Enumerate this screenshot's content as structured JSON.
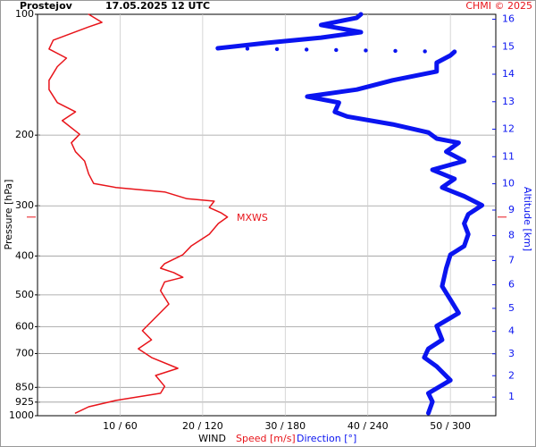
{
  "chart_data": {
    "type": "profile",
    "title": "Prostejov",
    "subtitle": "17.05.2025 12 UTC",
    "credit": "CHMI © 2025",
    "x_label": "WIND",
    "y_label": "Pressure [hPa]",
    "y2_label": "Altitude [km]",
    "ylim": [
      1000,
      100
    ],
    "y_log": true,
    "yticks": [
      100,
      200,
      300,
      400,
      500,
      600,
      700,
      850,
      925,
      1000
    ],
    "xlim": [
      0,
      55.5
    ],
    "x2lim": [
      0,
      333
    ],
    "xticks": [
      {
        "value": 10,
        "label": "10 / 60"
      },
      {
        "value": 20,
        "label": "20 / 120"
      },
      {
        "value": 30,
        "label": "30 / 180"
      },
      {
        "value": 40,
        "label": "40 / 240"
      },
      {
        "value": 50,
        "label": "50 / 300"
      }
    ],
    "y2ticks": [
      1,
      2,
      3,
      4,
      5,
      6,
      7,
      8,
      9,
      10,
      11,
      12,
      13,
      14,
      15,
      16
    ],
    "grid": true,
    "annotation": {
      "text": "MXWS",
      "pressure": 320
    },
    "series": [
      {
        "name": "Speed [m/s]",
        "color": "#e8141a",
        "axis": "x",
        "pressure": [
          100,
          104.7,
          107.5,
          116,
          122,
          128.6,
          135,
          146,
          154,
          166,
          175,
          184,
          199,
          209,
          220,
          232,
          250,
          264,
          270,
          277,
          288,
          292,
          303,
          312,
          320,
          332,
          353,
          378,
          397,
          418,
          429,
          440,
          452,
          464,
          488,
          527,
          569,
          614,
          647,
          681,
          716,
          762,
          794,
          845,
          879,
          916,
          950,
          985
        ],
        "values": [
          6.2,
          7.8,
          6.2,
          1.9,
          1.4,
          3.5,
          2.4,
          1.4,
          1.4,
          2.4,
          4.6,
          3.0,
          5.1,
          4.1,
          4.6,
          5.7,
          6.2,
          6.8,
          9.5,
          15.4,
          18.1,
          21.4,
          20.8,
          22.2,
          23.0,
          21.9,
          20.8,
          18.6,
          17.6,
          15.4,
          14.9,
          16.5,
          17.6,
          15.4,
          14.9,
          15.9,
          14.3,
          12.7,
          13.8,
          12.2,
          13.8,
          17.0,
          14.3,
          15.4,
          14.9,
          9.5,
          6.2,
          4.6
        ]
      },
      {
        "name": "Direction [°]",
        "color": "#0a14f0",
        "axis": "x2",
        "pressure": [
          100,
          102,
          106.3,
          110.8,
          114.3,
          117.8,
          121.5,
          123,
          124,
          126.6,
          132,
          138.8,
          146,
          154,
          160.3,
          166,
          175,
          179.7,
          188,
          197,
          204,
          209,
          220,
          232,
          244,
          257,
          270,
          284,
          299,
          315,
          332,
          353,
          378,
          397,
          429,
          476,
          514,
          555,
          598,
          647,
          681,
          716,
          754,
          816,
          879,
          923,
          985
        ],
        "values": [
          235,
          232,
          206,
          235,
          206,
          167,
          131,
          null,
          303,
          300,
          290,
          290,
          258,
          232,
          196,
          219,
          216,
          225,
          258,
          284,
          290,
          306,
          297,
          310,
          287,
          303,
          294,
          310,
          323,
          313,
          310,
          313,
          310,
          300,
          297,
          294,
          300,
          306,
          290,
          294,
          284,
          281,
          290,
          300,
          284,
          287,
          284
        ]
      }
    ]
  }
}
